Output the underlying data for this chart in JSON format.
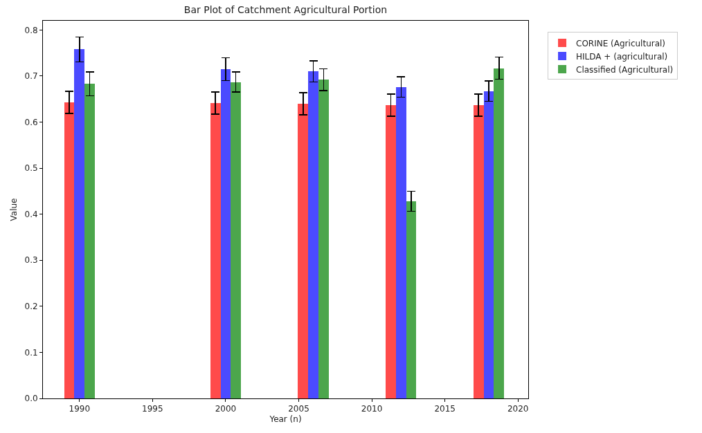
{
  "chart_data": {
    "type": "bar",
    "title": "Bar Plot of Catchment Agricultural Portion",
    "xlabel": "Year (n)",
    "ylabel": "Value",
    "series": [
      {
        "name": "CORINE (Agricultural)",
        "color": "#ff4b4b",
        "x": [
          1989.3,
          1999.3,
          2005.3,
          2011.3,
          2017.3
        ],
        "values": [
          0.643,
          0.641,
          0.64,
          0.637,
          0.637
        ],
        "errors": [
          0.024,
          0.024,
          0.024,
          0.024,
          0.024
        ]
      },
      {
        "name": "HILDA + (agricultural)",
        "color": "#4b4bff",
        "x": [
          1990,
          2000,
          2006,
          2012,
          2018
        ],
        "values": [
          0.758,
          0.715,
          0.71,
          0.676,
          0.667
        ],
        "errors": [
          0.027,
          0.025,
          0.023,
          0.022,
          0.022
        ]
      },
      {
        "name": "Classified (Agricultural)",
        "color": "#4ca64c",
        "x": [
          1990.7,
          2000.7,
          2006.7,
          2012.7,
          2018.7
        ],
        "values": [
          0.683,
          0.687,
          0.692,
          0.428,
          0.717
        ],
        "errors": [
          0.026,
          0.022,
          0.024,
          0.022,
          0.024
        ]
      }
    ],
    "xlim": [
      1987.5,
      2020.7
    ],
    "xticks": [
      1990,
      1995,
      2000,
      2005,
      2010,
      2015,
      2020
    ],
    "ylim": [
      0,
      0.82
    ],
    "yticks": [
      {
        "value": 0,
        "label": "0.0"
      },
      0.1,
      0.2,
      0.3,
      0.4,
      0.5,
      0.6,
      0.7,
      0.8
    ],
    "legend": "top right"
  }
}
